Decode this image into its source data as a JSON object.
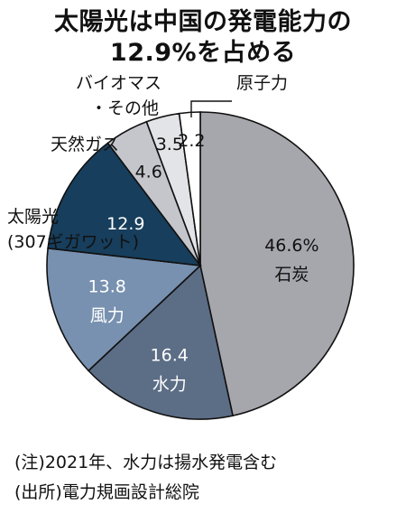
{
  "title_line1": "太陽光は中国の発電能力の",
  "title_line2": "12.9%を占める",
  "chart_data": {
    "type": "pie",
    "title": "太陽光は中国の発電能力の12.9%を占める",
    "slices": [
      {
        "label": "石炭",
        "value": 46.6,
        "value_text": "46.6%",
        "color": "#a6a6ad"
      },
      {
        "label": "水力",
        "value": 16.4,
        "value_text": "16.4",
        "color": "#5c6d86"
      },
      {
        "label": "風力",
        "value": 13.8,
        "value_text": "13.8",
        "color": "#7891b0"
      },
      {
        "label": "太陽光",
        "label2": "(307ギガワット)",
        "value": 12.9,
        "value_text": "12.9",
        "color": "#173e5c"
      },
      {
        "label": "天然ガス",
        "value": 4.6,
        "value_text": "4.6",
        "color": "#c4c6cb"
      },
      {
        "label": "バイオマス",
        "label2": "・その他",
        "value": 3.5,
        "value_text": "3.5",
        "color": "#e3e4e7"
      },
      {
        "label": "原子力",
        "value": 2.2,
        "value_text": "2.2",
        "color": "#ffffff"
      }
    ]
  },
  "notes": {
    "note1": "(注)2021年、水力は揚水発電含む",
    "note2": "(出所)電力規画設計総院"
  }
}
